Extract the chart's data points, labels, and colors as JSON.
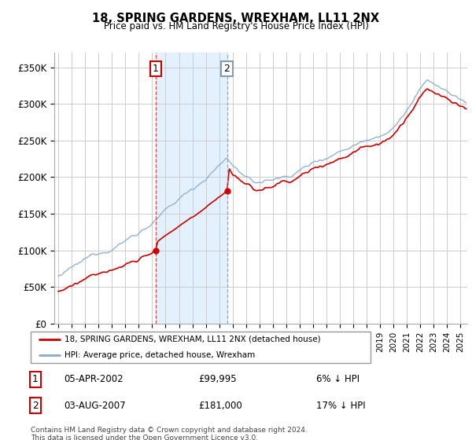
{
  "title": "18, SPRING GARDENS, WREXHAM, LL11 2NX",
  "subtitle": "Price paid vs. HM Land Registry's House Price Index (HPI)",
  "ylim": [
    0,
    370000
  ],
  "yticks": [
    0,
    50000,
    100000,
    150000,
    200000,
    250000,
    300000,
    350000
  ],
  "ytick_labels": [
    "£0",
    "£50K",
    "£100K",
    "£150K",
    "£200K",
    "£250K",
    "£300K",
    "£350K"
  ],
  "transaction1_date": "05-APR-2002",
  "transaction1_price": 99995,
  "transaction1_pct": "6%",
  "transaction1_label": "1",
  "transaction1_year": 2002.27,
  "transaction2_date": "03-AUG-2007",
  "transaction2_price": 181000,
  "transaction2_pct": "17%",
  "transaction2_label": "2",
  "transaction2_year": 2007.58,
  "legend_line1": "18, SPRING GARDENS, WREXHAM, LL11 2NX (detached house)",
  "legend_line2": "HPI: Average price, detached house, Wrexham",
  "footer1": "Contains HM Land Registry data © Crown copyright and database right 2024.",
  "footer2": "This data is licensed under the Open Government Licence v3.0.",
  "line_color_red": "#cc0000",
  "line_color_blue": "#88aacc",
  "vline_color1": "#cc3333",
  "vline_color2": "#8899aa",
  "shaded_color": "#ddeeff",
  "background_color": "#ffffff",
  "grid_color": "#cccccc",
  "xmin": 1994.7,
  "xmax": 2025.5
}
